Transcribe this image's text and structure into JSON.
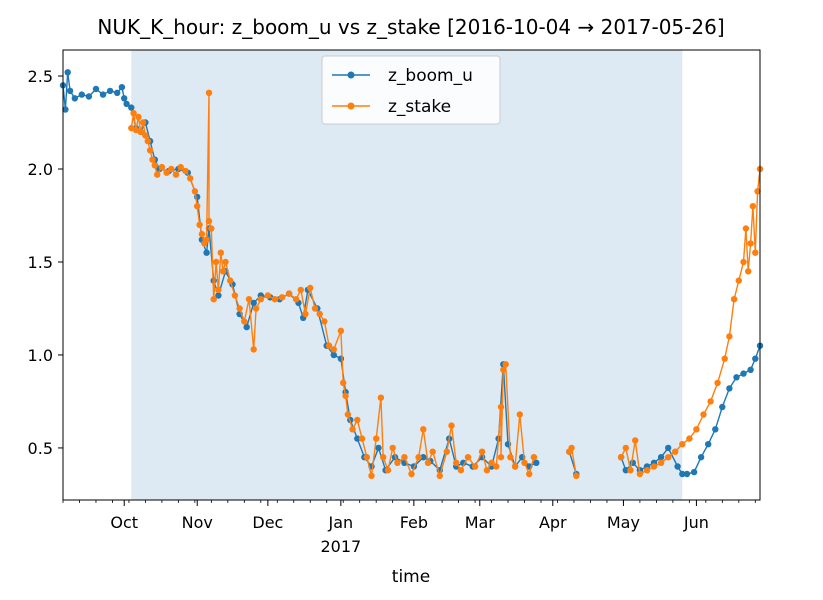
{
  "chart_data": {
    "type": "line",
    "title": "NUK_K_hour: z_boom_u vs z_stake  [2016-10-04 → 2017-05-26]",
    "xlabel": "time",
    "ylabel": "",
    "xlim": [
      "2016-09-05",
      "2017-06-28"
    ],
    "ylim": [
      0.22,
      2.64
    ],
    "shaded_span": [
      "2016-10-04",
      "2017-05-26"
    ],
    "shaded_color": "#dde9f3",
    "grid": false,
    "legend_position": "top-center",
    "y_ticks": [
      0.5,
      1.0,
      1.5,
      2.0,
      2.5
    ],
    "y_tick_labels": [
      "0.5",
      "1.0",
      "1.5",
      "2.0",
      "2.5"
    ],
    "x_ticks": [
      {
        "date": "2016-10-01",
        "label": "Oct",
        "sublabel": ""
      },
      {
        "date": "2016-11-01",
        "label": "Nov",
        "sublabel": ""
      },
      {
        "date": "2016-12-01",
        "label": "Dec",
        "sublabel": ""
      },
      {
        "date": "2017-01-01",
        "label": "Jan",
        "sublabel": "2017"
      },
      {
        "date": "2017-02-01",
        "label": "Feb",
        "sublabel": ""
      },
      {
        "date": "2017-03-01",
        "label": "Mar",
        "sublabel": ""
      },
      {
        "date": "2017-04-01",
        "label": "Apr",
        "sublabel": ""
      },
      {
        "date": "2017-05-01",
        "label": "May",
        "sublabel": ""
      },
      {
        "date": "2017-06-01",
        "label": "Jun",
        "sublabel": ""
      }
    ],
    "series": [
      {
        "name": "z_boom_u",
        "color": "#1f77b4",
        "points": [
          [
            "2016-09-05",
            2.45
          ],
          [
            "2016-09-06",
            2.32
          ],
          [
            "2016-09-07",
            2.52
          ],
          [
            "2016-09-08",
            2.42
          ],
          [
            "2016-09-10",
            2.38
          ],
          [
            "2016-09-13",
            2.4
          ],
          [
            "2016-09-16",
            2.39
          ],
          [
            "2016-09-19",
            2.43
          ],
          [
            "2016-09-22",
            2.4
          ],
          [
            "2016-09-25",
            2.42
          ],
          [
            "2016-09-28",
            2.41
          ],
          [
            "2016-09-30",
            2.44
          ],
          [
            "2016-10-01",
            2.38
          ],
          [
            "2016-10-02",
            2.35
          ],
          [
            "2016-10-04",
            2.33
          ],
          [
            "2016-10-06",
            2.22
          ],
          [
            "2016-10-08",
            2.2
          ],
          [
            "2016-10-10",
            2.25
          ],
          [
            "2016-10-12",
            2.15
          ],
          [
            "2016-10-14",
            2.05
          ],
          [
            "2016-10-16",
            2.0
          ],
          [
            "2016-10-20",
            1.99
          ],
          [
            "2016-10-24",
            2.0
          ],
          [
            "2016-10-28",
            1.98
          ],
          [
            "2016-11-01",
            1.85
          ],
          [
            "2016-11-03",
            1.62
          ],
          [
            "2016-11-05",
            1.55
          ],
          [
            "2016-11-06",
            1.68
          ],
          [
            "2016-11-08",
            1.4
          ],
          [
            "2016-11-10",
            1.32
          ],
          [
            "2016-11-13",
            1.45
          ],
          [
            "2016-11-16",
            1.38
          ],
          [
            "2016-11-19",
            1.22
          ],
          [
            "2016-11-22",
            1.15
          ],
          [
            "2016-11-25",
            1.28
          ],
          [
            "2016-11-28",
            1.32
          ],
          [
            "2016-12-02",
            1.31
          ],
          [
            "2016-12-06",
            1.3
          ],
          [
            "2016-12-10",
            1.33
          ],
          [
            "2016-12-14",
            1.28
          ],
          [
            "2016-12-16",
            1.2
          ],
          [
            "2016-12-18",
            1.35
          ],
          [
            "2016-12-22",
            1.25
          ],
          [
            "2016-12-26",
            1.05
          ],
          [
            "2016-12-29",
            1.0
          ],
          [
            "2017-01-01",
            0.98
          ],
          [
            "2017-01-03",
            0.8
          ],
          [
            "2017-01-05",
            0.65
          ],
          [
            "2017-01-08",
            0.55
          ],
          [
            "2017-01-11",
            0.45
          ],
          [
            "2017-01-14",
            0.4
          ],
          [
            "2017-01-17",
            0.5
          ],
          [
            "2017-01-20",
            0.38
          ],
          [
            "2017-01-24",
            0.45
          ],
          [
            "2017-01-28",
            0.42
          ],
          [
            "2017-02-01",
            0.4
          ],
          [
            "2017-02-05",
            0.45
          ],
          [
            "2017-02-08",
            0.43
          ],
          [
            "2017-02-12",
            0.38
          ],
          [
            "2017-02-16",
            0.55
          ],
          [
            "2017-02-19",
            0.4
          ],
          [
            "2017-02-22",
            0.42
          ],
          [
            "2017-02-26",
            0.4
          ],
          [
            "2017-03-02",
            0.45
          ],
          [
            "2017-03-06",
            0.4
          ],
          [
            "2017-03-09",
            0.55
          ],
          [
            "2017-03-11",
            0.95
          ],
          [
            "2017-03-13",
            0.52
          ],
          [
            "2017-03-16",
            0.4
          ],
          [
            "2017-03-19",
            0.45
          ],
          [
            "2017-03-22",
            0.4
          ],
          [
            "2017-03-25",
            0.42
          ],
          [
            "2017-04-08",
            0.48
          ],
          [
            "2017-04-11",
            0.36
          ],
          [
            "2017-04-30",
            0.45
          ],
          [
            "2017-05-02",
            0.38
          ],
          [
            "2017-05-05",
            0.42
          ],
          [
            "2017-05-08",
            0.38
          ],
          [
            "2017-05-11",
            0.4
          ],
          [
            "2017-05-14",
            0.42
          ],
          [
            "2017-05-17",
            0.45
          ],
          [
            "2017-05-20",
            0.5
          ],
          [
            "2017-05-24",
            0.4
          ],
          [
            "2017-05-26",
            0.36
          ],
          [
            "2017-05-28",
            0.36
          ],
          [
            "2017-05-31",
            0.37
          ],
          [
            "2017-06-03",
            0.45
          ],
          [
            "2017-06-06",
            0.52
          ],
          [
            "2017-06-09",
            0.6
          ],
          [
            "2017-06-12",
            0.72
          ],
          [
            "2017-06-15",
            0.82
          ],
          [
            "2017-06-18",
            0.88
          ],
          [
            "2017-06-21",
            0.9
          ],
          [
            "2017-06-24",
            0.92
          ],
          [
            "2017-06-26",
            0.98
          ],
          [
            "2017-06-28",
            1.05
          ]
        ]
      },
      {
        "name": "z_stake",
        "color": "#ff7f0e",
        "points": [
          [
            "2016-10-04",
            2.22
          ],
          [
            "2016-10-05",
            2.3
          ],
          [
            "2016-10-06",
            2.21
          ],
          [
            "2016-10-07",
            2.28
          ],
          [
            "2016-10-08",
            2.2
          ],
          [
            "2016-10-09",
            2.25
          ],
          [
            "2016-10-10",
            2.18
          ],
          [
            "2016-10-11",
            2.15
          ],
          [
            "2016-10-12",
            2.1
          ],
          [
            "2016-10-13",
            2.05
          ],
          [
            "2016-10-14",
            2.02
          ],
          [
            "2016-10-15",
            1.97
          ],
          [
            "2016-10-17",
            2.01
          ],
          [
            "2016-10-19",
            1.98
          ],
          [
            "2016-10-21",
            2.0
          ],
          [
            "2016-10-23",
            1.97
          ],
          [
            "2016-10-25",
            2.01
          ],
          [
            "2016-10-27",
            1.99
          ],
          [
            "2016-10-29",
            1.95
          ],
          [
            "2016-10-31",
            1.88
          ],
          [
            "2016-11-01",
            1.8
          ],
          [
            "2016-11-02",
            1.7
          ],
          [
            "2016-11-03",
            1.65
          ],
          [
            "2016-11-04",
            1.6
          ],
          [
            "2016-11-05",
            1.62
          ],
          [
            "2016-11-06",
            2.41
          ],
          [
            "2016-11-06",
            1.72
          ],
          [
            "2016-11-07",
            1.68
          ],
          [
            "2016-11-08",
            1.3
          ],
          [
            "2016-11-09",
            1.5
          ],
          [
            "2016-11-10",
            1.35
          ],
          [
            "2016-11-11",
            1.55
          ],
          [
            "2016-11-12",
            1.45
          ],
          [
            "2016-11-13",
            1.5
          ],
          [
            "2016-11-15",
            1.4
          ],
          [
            "2016-11-17",
            1.32
          ],
          [
            "2016-11-19",
            1.25
          ],
          [
            "2016-11-21",
            1.18
          ],
          [
            "2016-11-23",
            1.3
          ],
          [
            "2016-11-25",
            1.03
          ],
          [
            "2016-11-26",
            1.25
          ],
          [
            "2016-11-28",
            1.3
          ],
          [
            "2016-12-01",
            1.32
          ],
          [
            "2016-12-04",
            1.3
          ],
          [
            "2016-12-07",
            1.31
          ],
          [
            "2016-12-10",
            1.33
          ],
          [
            "2016-12-13",
            1.3
          ],
          [
            "2016-12-15",
            1.35
          ],
          [
            "2016-12-17",
            1.22
          ],
          [
            "2016-12-19",
            1.36
          ],
          [
            "2016-12-21",
            1.25
          ],
          [
            "2016-12-23",
            1.22
          ],
          [
            "2016-12-25",
            1.18
          ],
          [
            "2016-12-27",
            1.05
          ],
          [
            "2016-12-29",
            1.03
          ],
          [
            "2017-01-01",
            1.13
          ],
          [
            "2017-01-02",
            0.85
          ],
          [
            "2017-01-03",
            0.78
          ],
          [
            "2017-01-04",
            0.68
          ],
          [
            "2017-01-06",
            0.6
          ],
          [
            "2017-01-08",
            0.65
          ],
          [
            "2017-01-10",
            0.55
          ],
          [
            "2017-01-12",
            0.45
          ],
          [
            "2017-01-14",
            0.35
          ],
          [
            "2017-01-16",
            0.55
          ],
          [
            "2017-01-18",
            0.77
          ],
          [
            "2017-01-19",
            0.45
          ],
          [
            "2017-01-21",
            0.38
          ],
          [
            "2017-01-23",
            0.5
          ],
          [
            "2017-01-25",
            0.42
          ],
          [
            "2017-01-28",
            0.45
          ],
          [
            "2017-01-31",
            0.36
          ],
          [
            "2017-02-03",
            0.45
          ],
          [
            "2017-02-05",
            0.6
          ],
          [
            "2017-02-07",
            0.42
          ],
          [
            "2017-02-09",
            0.48
          ],
          [
            "2017-02-12",
            0.35
          ],
          [
            "2017-02-15",
            0.48
          ],
          [
            "2017-02-17",
            0.62
          ],
          [
            "2017-02-19",
            0.42
          ],
          [
            "2017-02-21",
            0.38
          ],
          [
            "2017-02-24",
            0.45
          ],
          [
            "2017-02-27",
            0.4
          ],
          [
            "2017-03-02",
            0.48
          ],
          [
            "2017-03-04",
            0.38
          ],
          [
            "2017-03-06",
            0.42
          ],
          [
            "2017-03-08",
            0.4
          ],
          [
            "2017-03-10",
            0.72
          ],
          [
            "2017-03-10",
            0.45
          ],
          [
            "2017-03-11",
            0.92
          ],
          [
            "2017-03-12",
            0.95
          ],
          [
            "2017-03-14",
            0.45
          ],
          [
            "2017-03-16",
            0.4
          ],
          [
            "2017-03-18",
            0.68
          ],
          [
            "2017-03-20",
            0.42
          ],
          [
            "2017-03-22",
            0.36
          ],
          [
            "2017-03-24",
            0.45
          ],
          [
            "2017-04-08",
            0.48
          ],
          [
            "2017-04-09",
            0.5
          ],
          [
            "2017-04-11",
            0.35
          ],
          [
            "2017-04-30",
            0.45
          ],
          [
            "2017-05-02",
            0.5
          ],
          [
            "2017-05-04",
            0.38
          ],
          [
            "2017-05-06",
            0.54
          ],
          [
            "2017-05-08",
            0.36
          ],
          [
            "2017-05-11",
            0.38
          ],
          [
            "2017-05-14",
            0.4
          ],
          [
            "2017-05-17",
            0.42
          ],
          [
            "2017-05-20",
            0.45
          ],
          [
            "2017-05-23",
            0.48
          ],
          [
            "2017-05-26",
            0.52
          ],
          [
            "2017-05-29",
            0.55
          ],
          [
            "2017-06-01",
            0.6
          ],
          [
            "2017-06-04",
            0.68
          ],
          [
            "2017-06-07",
            0.75
          ],
          [
            "2017-06-10",
            0.85
          ],
          [
            "2017-06-13",
            0.98
          ],
          [
            "2017-06-15",
            1.1
          ],
          [
            "2017-06-17",
            1.3
          ],
          [
            "2017-06-19",
            1.4
          ],
          [
            "2017-06-21",
            1.5
          ],
          [
            "2017-06-22",
            1.68
          ],
          [
            "2017-06-23",
            1.45
          ],
          [
            "2017-06-24",
            1.6
          ],
          [
            "2017-06-25",
            1.8
          ],
          [
            "2017-06-26",
            1.55
          ],
          [
            "2017-06-27",
            1.88
          ],
          [
            "2017-06-28",
            2.0
          ]
        ]
      }
    ]
  }
}
